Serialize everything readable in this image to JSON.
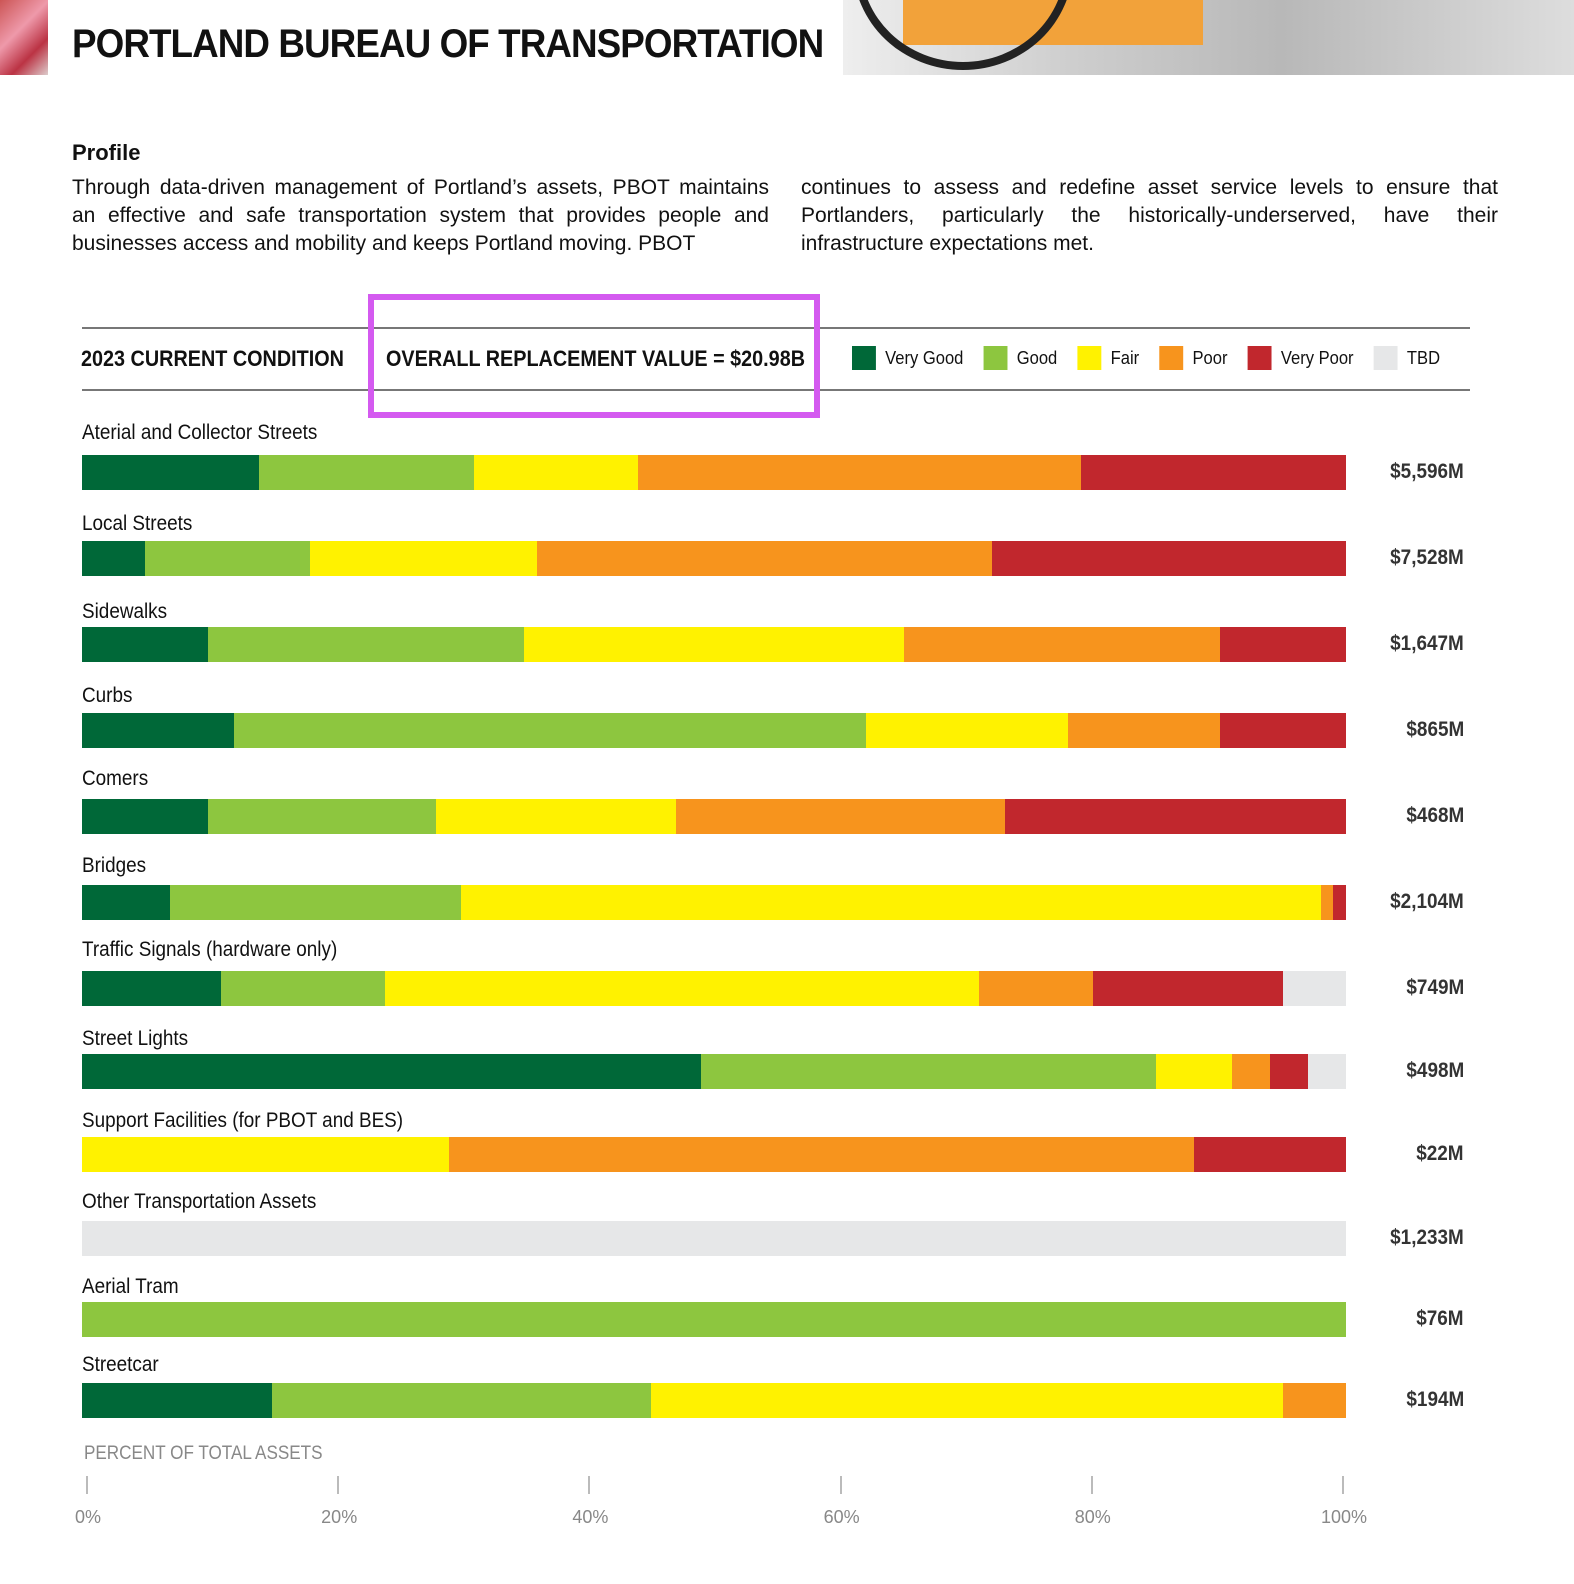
{
  "header": {
    "title": "PORTLAND BUREAU OF TRANSPORTATION"
  },
  "profile": {
    "heading": "Profile",
    "col1": "Through data-driven management of Portland’s assets, PBOT maintains an effective and safe transportation system that provides people and businesses access and mobility and keeps Portland moving. PBOT",
    "col2": "continues to assess and redefine asset service levels to ensure that Portlanders, particularly the historically-underserved, have their infrastructure expectations met."
  },
  "chart_data": {
    "type": "bar",
    "orientation": "horizontal-stacked-100",
    "title": "2023 CURRENT CONDITION",
    "subtitle": "OVERALL REPLACEMENT VALUE = $20.98B",
    "xlabel": "PERCENT OF TOTAL ASSETS",
    "xlim": [
      0,
      100
    ],
    "xticks": [
      "0%",
      "20%",
      "40%",
      "60%",
      "80%",
      "100%"
    ],
    "legend": [
      {
        "name": "Very Good",
        "color": "#006838"
      },
      {
        "name": "Good",
        "color": "#8dc63f"
      },
      {
        "name": "Fair",
        "color": "#fff200"
      },
      {
        "name": "Poor",
        "color": "#f7941d"
      },
      {
        "name": "Very Poor",
        "color": "#c1272d"
      },
      {
        "name": "TBD",
        "color": "#e6e7e8"
      }
    ],
    "categories": [
      {
        "name": "Aterial and Collector Streets",
        "value": "$5,596M",
        "pct": [
          14,
          17,
          13,
          35,
          21,
          0
        ]
      },
      {
        "name": "Local Streets",
        "value": "$7,528M",
        "pct": [
          5,
          13,
          18,
          36,
          28,
          0
        ]
      },
      {
        "name": "Sidewalks",
        "value": "$1,647M",
        "pct": [
          10,
          25,
          30,
          25,
          10,
          0
        ]
      },
      {
        "name": "Curbs",
        "value": "$865M",
        "pct": [
          12,
          50,
          16,
          12,
          10,
          0
        ]
      },
      {
        "name": "Comers",
        "value": "$468M",
        "pct": [
          10,
          18,
          19,
          26,
          27,
          0
        ]
      },
      {
        "name": "Bridges",
        "value": "$2,104M",
        "pct": [
          7,
          23,
          68,
          1,
          1,
          0
        ]
      },
      {
        "name": "Traffic Signals (hardware only)",
        "value": "$749M",
        "pct": [
          11,
          13,
          47,
          9,
          15,
          5
        ]
      },
      {
        "name": "Street Lights",
        "value": "$498M",
        "pct": [
          49,
          36,
          6,
          3,
          3,
          3
        ]
      },
      {
        "name": "Support Facilities (for PBOT and BES)",
        "value": "$22M",
        "pct": [
          0,
          0,
          29,
          59,
          12,
          0
        ]
      },
      {
        "name": "Other Transportation Assets",
        "value": "$1,233M",
        "pct": [
          0,
          0,
          0,
          0,
          0,
          100
        ]
      },
      {
        "name": "Aerial Tram",
        "value": "$76M",
        "pct": [
          0,
          100,
          0,
          0,
          0,
          0
        ]
      },
      {
        "name": "Streetcar",
        "value": "$194M",
        "pct": [
          15,
          30,
          50,
          5,
          0,
          0
        ]
      }
    ]
  }
}
